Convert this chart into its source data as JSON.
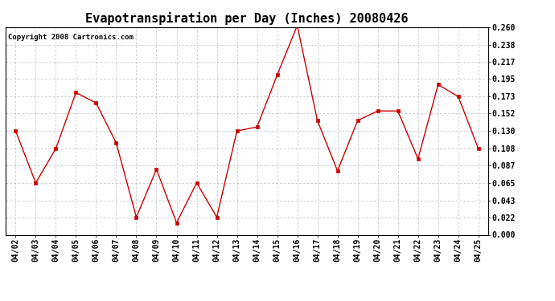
{
  "title": "Evapotranspiration per Day (Inches) 20080426",
  "copyright_text": "Copyright 2008 Cartronics.com",
  "dates": [
    "04/02",
    "04/03",
    "04/04",
    "04/05",
    "04/06",
    "04/07",
    "04/08",
    "04/09",
    "04/10",
    "04/11",
    "04/12",
    "04/13",
    "04/14",
    "04/15",
    "04/16",
    "04/17",
    "04/18",
    "04/19",
    "04/20",
    "04/21",
    "04/22",
    "04/23",
    "04/24",
    "04/25"
  ],
  "values": [
    0.13,
    0.065,
    0.108,
    0.178,
    0.165,
    0.115,
    0.022,
    0.082,
    0.015,
    0.065,
    0.022,
    0.13,
    0.135,
    0.2,
    0.262,
    0.143,
    0.08,
    0.143,
    0.155,
    0.155,
    0.095,
    0.188,
    0.173,
    0.108
  ],
  "line_color": "#cc0000",
  "marker": "s",
  "marker_size": 2.5,
  "ylim": [
    0.0,
    0.26
  ],
  "yticks": [
    0.0,
    0.022,
    0.043,
    0.065,
    0.087,
    0.108,
    0.13,
    0.152,
    0.173,
    0.195,
    0.217,
    0.238,
    0.26
  ],
  "background_color": "#ffffff",
  "grid_color": "#bbbbbb",
  "title_fontsize": 11,
  "tick_fontsize": 7,
  "copyright_fontsize": 6.5
}
